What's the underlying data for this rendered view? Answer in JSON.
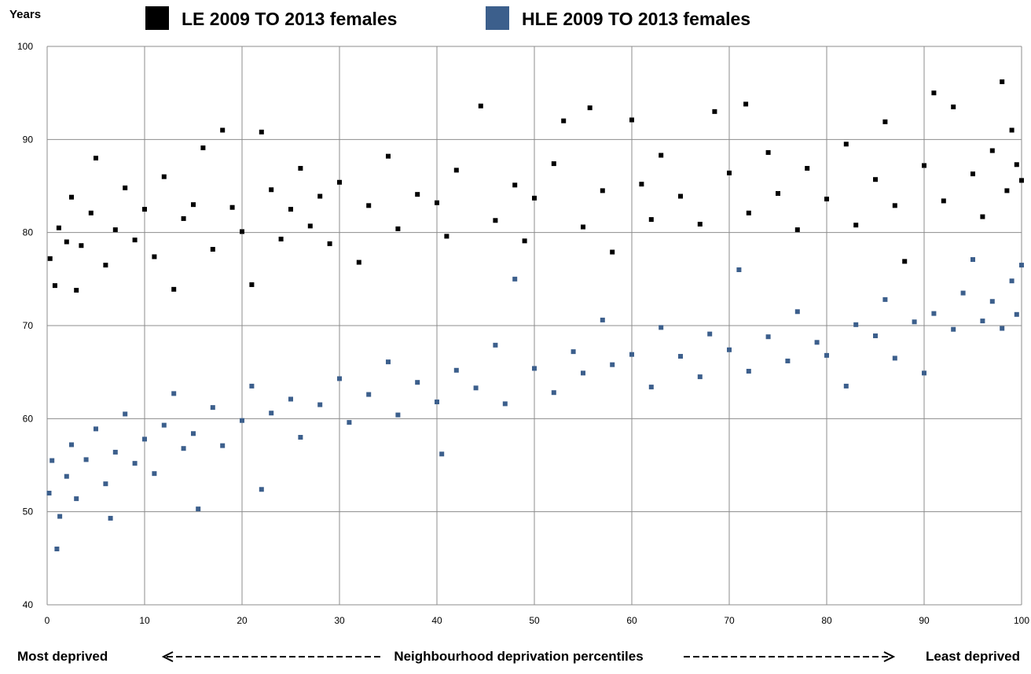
{
  "chart_data": {
    "type": "scatter",
    "y_axis_label": "Years",
    "x_axis_label": "Neighbourhood deprivation percentiles",
    "x_left_label": "Most deprived",
    "x_right_label": "Least deprived",
    "xlim": [
      0,
      100
    ],
    "xticks": [
      0,
      10,
      20,
      30,
      40,
      50,
      60,
      70,
      80,
      90,
      100
    ],
    "ylim": [
      40,
      100
    ],
    "yticks": [
      40,
      50,
      60,
      70,
      80,
      90,
      100
    ],
    "grid": true,
    "series": [
      {
        "name": "LE 2009 TO 2013 females",
        "color": "#000000",
        "x": [
          0.3,
          0.8,
          1.2,
          2,
          2.5,
          3,
          3.5,
          4.5,
          5,
          6,
          7,
          8,
          9,
          10,
          11,
          12,
          13,
          14,
          15,
          16,
          17,
          18,
          19,
          20,
          21,
          22,
          23,
          24,
          25,
          26,
          27,
          28,
          29,
          30,
          32,
          33,
          35,
          36,
          38,
          40,
          41,
          42,
          44.5,
          46,
          48,
          49,
          50,
          52,
          53,
          55,
          55.7,
          57,
          58,
          60,
          61,
          62,
          63,
          65,
          67,
          68.5,
          70,
          71.7,
          72,
          74,
          75,
          77,
          78,
          80,
          82,
          83,
          85,
          86,
          87,
          88,
          90,
          91,
          92,
          93,
          95,
          96,
          97,
          98,
          98.5,
          99,
          99.5,
          100
        ],
        "values": [
          77.2,
          74.3,
          80.5,
          79,
          83.8,
          73.8,
          78.6,
          82.1,
          88,
          76.5,
          80.3,
          84.8,
          79.2,
          82.5,
          77.4,
          86,
          73.9,
          81.5,
          83,
          89.1,
          78.2,
          91,
          82.7,
          80.1,
          74.4,
          90.8,
          84.6,
          79.3,
          82.5,
          86.9,
          80.7,
          83.9,
          78.8,
          85.4,
          76.8,
          82.9,
          88.2,
          80.4,
          84.1,
          83.2,
          79.6,
          86.7,
          93.6,
          81.3,
          85.1,
          79.1,
          83.7,
          87.4,
          92,
          80.6,
          93.4,
          84.5,
          77.9,
          92.1,
          85.2,
          81.4,
          88.3,
          83.9,
          80.9,
          93,
          86.4,
          93.8,
          82.1,
          88.6,
          84.2,
          80.3,
          86.9,
          83.6,
          89.5,
          80.8,
          85.7,
          91.9,
          82.9,
          76.9,
          87.2,
          95,
          83.4,
          93.5,
          86.3,
          81.7,
          88.8,
          96.2,
          84.5,
          91,
          87.3,
          85.6
        ]
      },
      {
        "name": "HLE 2009 TO 2013 females",
        "color": "#3c5f8c",
        "x": [
          0.2,
          0.5,
          1,
          1.3,
          2,
          2.5,
          3,
          4,
          5,
          6,
          6.5,
          7,
          8,
          9,
          10,
          11,
          12,
          13,
          14,
          15,
          15.5,
          17,
          18,
          20,
          21,
          22,
          23,
          25,
          26,
          28,
          30,
          31,
          33,
          35,
          36,
          38,
          40,
          40.5,
          42,
          44,
          46,
          47,
          48,
          50,
          52,
          54,
          55,
          57,
          58,
          60,
          62,
          63,
          65,
          67,
          68,
          70,
          71,
          72,
          74,
          76,
          77,
          79,
          80,
          82,
          83,
          85,
          86,
          87,
          89,
          90,
          91,
          93,
          94,
          95,
          96,
          97,
          98,
          99,
          99.5,
          100
        ],
        "values": [
          52,
          55.5,
          46,
          49.5,
          53.8,
          57.2,
          51.4,
          55.6,
          58.9,
          53,
          49.3,
          56.4,
          60.5,
          55.2,
          57.8,
          54.1,
          59.3,
          62.7,
          56.8,
          58.4,
          50.3,
          61.2,
          57.1,
          59.8,
          63.5,
          52.4,
          60.6,
          62.1,
          58,
          61.5,
          64.3,
          59.6,
          62.6,
          66.1,
          60.4,
          63.9,
          61.8,
          56.2,
          65.2,
          63.3,
          67.9,
          61.6,
          75,
          65.4,
          62.8,
          67.2,
          64.9,
          70.6,
          65.8,
          66.9,
          63.4,
          69.8,
          66.7,
          64.5,
          69.1,
          67.4,
          76,
          65.1,
          68.8,
          66.2,
          71.5,
          68.2,
          66.8,
          63.5,
          70.1,
          68.9,
          72.8,
          66.5,
          70.4,
          64.9,
          71.3,
          69.6,
          73.5,
          77.1,
          70.5,
          72.6,
          69.7,
          74.8,
          71.2,
          76.5
        ]
      }
    ]
  }
}
